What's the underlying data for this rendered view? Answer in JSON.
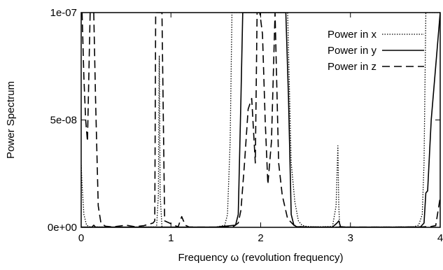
{
  "chart_data": {
    "type": "line",
    "title": "",
    "xlabel": "Frequency ω (revolution frequency)",
    "ylabel": "Power Spectrum",
    "xlim": [
      0,
      4
    ],
    "ylim": [
      0,
      1e-07
    ],
    "xticks": [
      0,
      1,
      2,
      3,
      4
    ],
    "xtick_labels": [
      "0",
      "1",
      "2",
      "3",
      "4"
    ],
    "yticks": [
      0,
      5e-08,
      1e-07
    ],
    "ytick_labels": [
      "0e+00",
      "5e-08",
      "1e-07"
    ],
    "grid": false,
    "legend_position": "top-right",
    "series": [
      {
        "name": "Power in x",
        "style": "dotted",
        "x": [
          0.0,
          0.01,
          0.03,
          0.06,
          0.1,
          0.5,
          0.84,
          0.86,
          0.87,
          0.88,
          0.9,
          0.92,
          1.0,
          1.5,
          1.6,
          1.63,
          1.66,
          1.68,
          1.7,
          1.72,
          2.26,
          2.3,
          2.34,
          2.38,
          2.42,
          2.46,
          2.5,
          2.6,
          2.8,
          2.84,
          2.86,
          2.87,
          2.88,
          2.9,
          3.0,
          3.7,
          3.76,
          3.8,
          3.82,
          3.84,
          4.0
        ],
        "y": [
          2.9e-08,
          2e-08,
          6e-09,
          1e-09,
          2e-10,
          1e-10,
          2e-10,
          1.5e-08,
          8e-08,
          1.5e-08,
          2e-10,
          1e-10,
          1e-10,
          1e-10,
          1e-09,
          6e-09,
          4e-08,
          1e-07,
          1e-07,
          1e-07,
          1e-07,
          1e-07,
          3e-08,
          1.2e-08,
          3e-09,
          1e-09,
          5e-10,
          2e-10,
          4e-10,
          1e-08,
          3.8e-08,
          1e-08,
          5e-10,
          2e-10,
          1e-10,
          2e-10,
          1e-09,
          6e-09,
          3e-08,
          1e-07,
          1e-07
        ]
      },
      {
        "name": "Power in y",
        "style": "solid",
        "x": [
          0.0,
          0.02,
          0.05,
          0.12,
          0.14,
          0.16,
          0.22,
          0.5,
          1.0,
          1.5,
          1.72,
          1.75,
          1.78,
          1.8,
          1.82,
          2.24,
          2.28,
          2.31,
          2.34,
          2.37,
          2.4,
          2.5,
          2.8,
          2.85,
          2.87,
          2.89,
          2.95,
          3.5,
          3.78,
          3.82,
          3.84,
          3.86,
          3.9,
          4.0
        ],
        "y": [
          1e-10,
          1e-10,
          1e-10,
          1e-10,
          1e-09,
          1e-10,
          1e-10,
          1e-10,
          1e-10,
          1e-10,
          1e-09,
          6e-09,
          6e-08,
          1e-07,
          1e-07,
          1e-07,
          1e-07,
          6e-08,
          6e-09,
          1e-09,
          3e-10,
          1e-10,
          1e-10,
          2e-09,
          3e-09,
          3e-10,
          1e-10,
          1e-10,
          2e-10,
          2e-09,
          1.6e-08,
          1.7e-08,
          5e-08,
          1e-07
        ]
      },
      {
        "name": "Power in z",
        "style": "dashed",
        "x": [
          0.01,
          0.03,
          0.05,
          0.07,
          0.1,
          0.12,
          0.14,
          0.16,
          0.19,
          0.22,
          0.27,
          0.35,
          0.5,
          0.6,
          0.7,
          0.8,
          0.82,
          0.83,
          0.86,
          0.88,
          0.9,
          0.93,
          1.08,
          1.12,
          1.16,
          1.2,
          1.3,
          1.6,
          1.7,
          1.75,
          1.78,
          1.82,
          1.86,
          1.9,
          1.92,
          1.94,
          1.96,
          1.99,
          2.02,
          2.05,
          2.08,
          2.12,
          2.16,
          2.2,
          2.24,
          2.3,
          2.37,
          2.42,
          2.5,
          2.8,
          3.0,
          3.5,
          3.8,
          3.9,
          3.95,
          4.0
        ],
        "y": [
          1e-07,
          7e-08,
          5e-08,
          4e-08,
          1e-07,
          1e-07,
          1e-07,
          6e-08,
          1e-08,
          2e-09,
          5e-10,
          2e-10,
          1e-09,
          3e-10,
          8e-10,
          2e-09,
          3e-09,
          1e-07,
          1e-07,
          1e-07,
          1e-07,
          3e-09,
          2e-10,
          5e-09,
          1e-09,
          2e-10,
          1e-10,
          1e-10,
          5e-10,
          2e-09,
          8e-09,
          3e-08,
          5.5e-08,
          6e-08,
          4.5e-08,
          3e-08,
          1e-07,
          1e-07,
          9e-08,
          5e-08,
          2e-08,
          4e-08,
          1e-07,
          3e-08,
          1.5e-08,
          4e-09,
          1e-09,
          4e-10,
          2e-10,
          1e-10,
          1e-10,
          1e-10,
          2e-10,
          4e-10,
          8e-10,
          1.4e-08
        ]
      }
    ]
  }
}
